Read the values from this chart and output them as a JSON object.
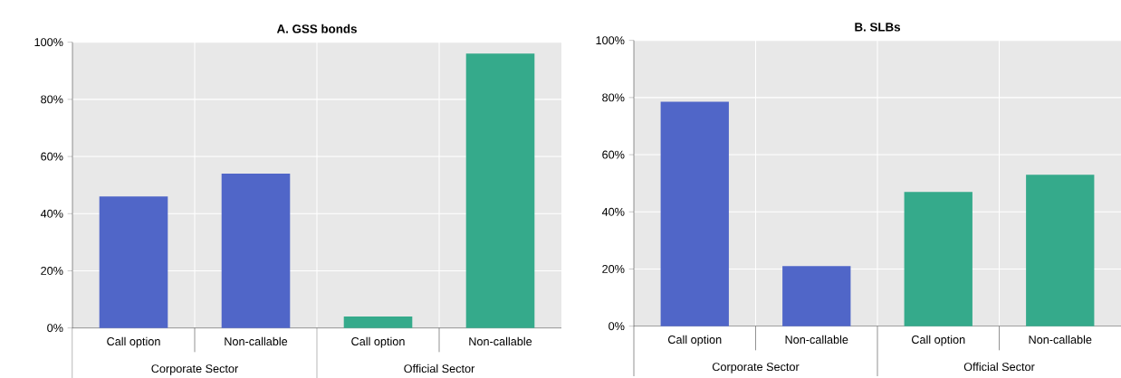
{
  "chart_data": [
    {
      "type": "bar",
      "title": "A. GSS bonds",
      "categories": [
        "Call option",
        "Non-callable",
        "Call option",
        "Non-callable"
      ],
      "values": [
        46,
        54,
        4,
        96
      ],
      "colors": [
        "#5066c8",
        "#5066c8",
        "#35aa8b",
        "#35aa8b"
      ],
      "annotations": [
        "Corporate Sector",
        "Official Sector"
      ],
      "ylim": [
        0,
        100
      ],
      "yticks": [
        {
          "value": 0,
          "label": "0%"
        },
        {
          "value": 20,
          "label": "20%"
        },
        {
          "value": 40,
          "label": "40%"
        },
        {
          "value": 60,
          "label": "60%"
        },
        {
          "value": 80,
          "label": "80%"
        },
        {
          "value": 100,
          "label": "100%"
        }
      ],
      "grid": true
    },
    {
      "type": "bar",
      "title": "B. SLBs",
      "categories": [
        "Call option",
        "Non-callable",
        "Call option",
        "Non-callable"
      ],
      "values": [
        78.5,
        21,
        47,
        53
      ],
      "colors": [
        "#5066c8",
        "#5066c8",
        "#35aa8b",
        "#35aa8b"
      ],
      "annotations": [
        "Corporate Sector",
        "Official Sector"
      ],
      "ylim": [
        0,
        100
      ],
      "yticks": [
        {
          "value": 0,
          "label": "0%"
        },
        {
          "value": 20,
          "label": "20%"
        },
        {
          "value": 40,
          "label": "40%"
        },
        {
          "value": 60,
          "label": "60%"
        },
        {
          "value": 80,
          "label": "80%"
        },
        {
          "value": 100,
          "label": "100%"
        }
      ],
      "grid": true
    }
  ]
}
